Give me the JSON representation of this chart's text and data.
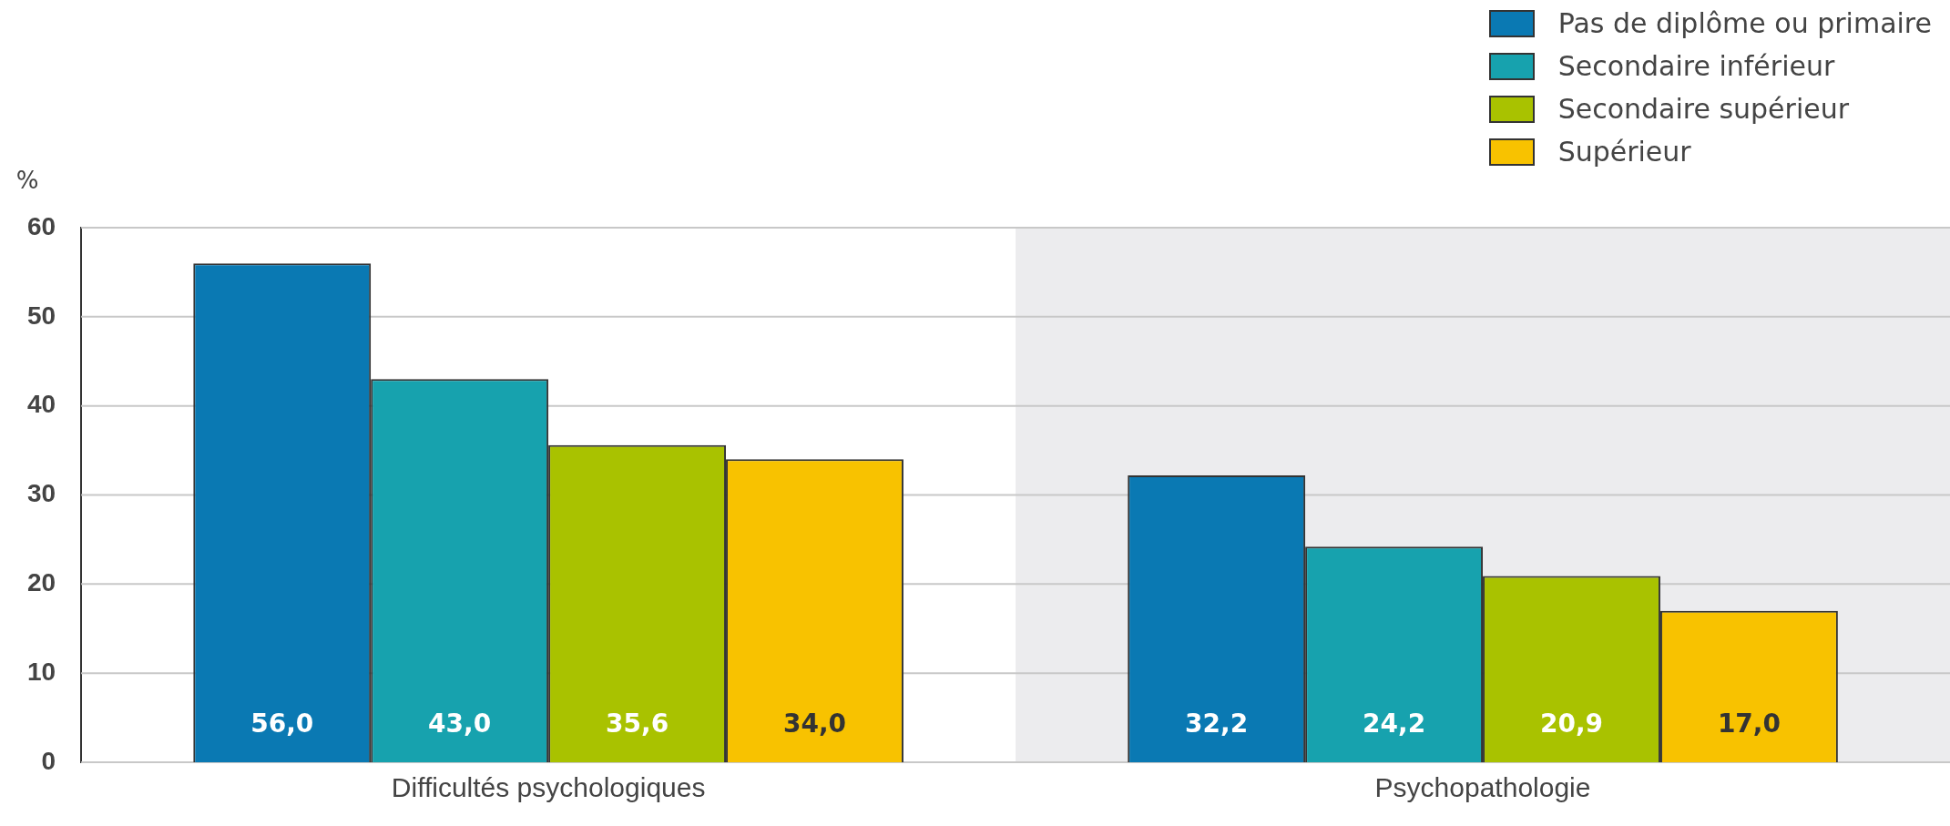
{
  "chart_data": {
    "type": "bar",
    "ylabel": "%",
    "categories": [
      "Difficultés psychologiques",
      "Psychopathologie"
    ],
    "series": [
      {
        "name": "Pas de diplôme ou primaire",
        "color": "#0a79b3",
        "values": [
          56.0,
          32.2
        ],
        "value_labels": [
          "56,0",
          "32,2"
        ]
      },
      {
        "name": "Secondaire inférieur",
        "color": "#17a2ae",
        "values": [
          43.0,
          24.2
        ],
        "value_labels": [
          "43,0",
          "24,2"
        ]
      },
      {
        "name": "Secondaire supérieur",
        "color": "#a9c200",
        "values": [
          35.6,
          20.9
        ],
        "value_labels": [
          "35,6",
          "20,9"
        ]
      },
      {
        "name": "Supérieur",
        "color": "#f8c200",
        "values": [
          34.0,
          17.0
        ],
        "value_labels": [
          "34,0",
          "17,0"
        ]
      }
    ],
    "ylim": [
      0,
      60
    ],
    "yticks": [
      0,
      10,
      20,
      30,
      40,
      50,
      60
    ],
    "grid": "y",
    "legend": "top right",
    "bands": [
      {
        "axis": "x",
        "from": "Psychopathologie",
        "to": "Psychopathologie",
        "color": "#ececee"
      }
    ]
  }
}
